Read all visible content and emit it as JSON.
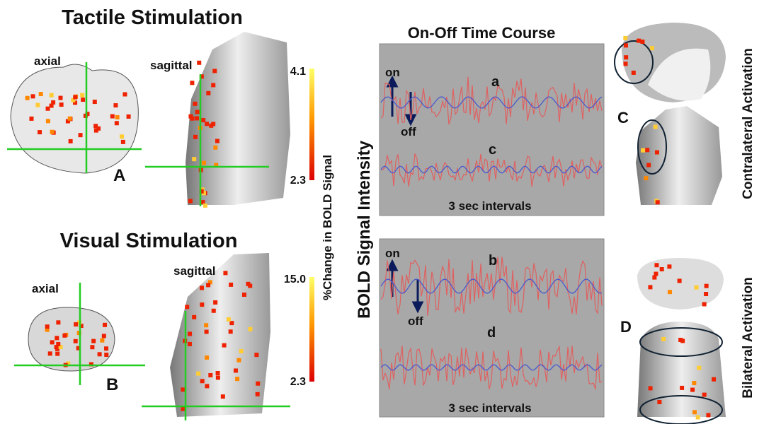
{
  "tactile": {
    "title": "Tactile Stimulation",
    "axial_label": "axial",
    "sagittal_label": "sagittal",
    "letter": "A",
    "colorbar_max": "4.1",
    "colorbar_min": "2.3"
  },
  "visual": {
    "title": "Visual Stimulation",
    "axial_label": "axial",
    "sagittal_label": "sagittal",
    "letter": "B",
    "colorbar_max": "15.0",
    "colorbar_min": "2.3"
  },
  "colorbar_label": "%Change in BOLD Signal",
  "time_course": {
    "title": "On-Off Time Course",
    "y_label": "BOLD Signal Intensity",
    "top": {
      "on": "on",
      "off": "off",
      "upper_trace": "a",
      "lower_trace": "c",
      "x_label": "3 sec intervals"
    },
    "bottom": {
      "on": "on",
      "off": "off",
      "upper_trace": "b",
      "lower_trace": "d",
      "x_label": "3 sec intervals"
    }
  },
  "right": {
    "letter_c": "C",
    "label_c": "Contralateral Activation",
    "letter_d": "D",
    "label_d": "Bilateral Activation"
  }
}
